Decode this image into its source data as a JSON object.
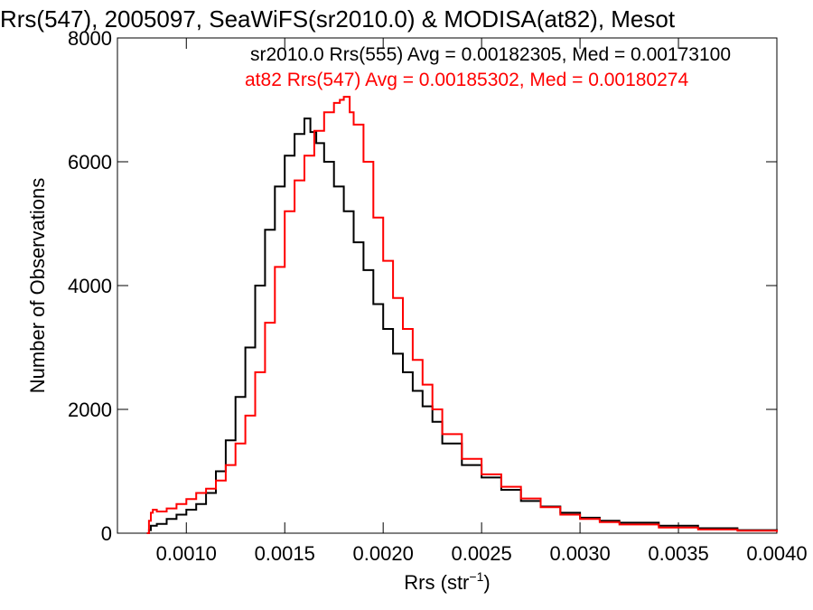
{
  "chart_data": {
    "type": "line",
    "title": "Rrs(547), 2005097, SeaWiFS(sr2010.0) & MODISA(at82), Mesot",
    "xlabel_main": "Rrs (str",
    "xlabel_sup": "−1",
    "xlabel_close": ")",
    "ylabel": "Number of Observations",
    "xlim": [
      0.00065,
      0.004
    ],
    "ylim": [
      0,
      8000
    ],
    "x_ticks": [
      0.001,
      0.0015,
      0.002,
      0.0025,
      0.003,
      0.0035,
      0.004
    ],
    "x_tick_labels": [
      "0.0010",
      "0.0015",
      "0.0020",
      "0.0025",
      "0.0030",
      "0.0035",
      "0.0040"
    ],
    "y_ticks": [
      0,
      2000,
      4000,
      6000,
      8000
    ],
    "y_tick_labels": [
      "0",
      "2000",
      "4000",
      "6000",
      "8000"
    ],
    "grid": false,
    "legend_placement": "top-right",
    "series": [
      {
        "name": "sr2010.0 Rrs(555) Avg = 0.00182305, Med = 0.00173100",
        "color": "#000000",
        "x": [
          0.0008,
          0.00081,
          0.00082,
          0.00085,
          0.0009,
          0.00095,
          0.001,
          0.00105,
          0.0011,
          0.00115,
          0.0012,
          0.00125,
          0.0013,
          0.00135,
          0.0014,
          0.00145,
          0.0015,
          0.00155,
          0.0016,
          0.00163,
          0.00166,
          0.0017,
          0.00175,
          0.0018,
          0.00185,
          0.0019,
          0.00195,
          0.002,
          0.00205,
          0.0021,
          0.00215,
          0.0022,
          0.00225,
          0.0023,
          0.0024,
          0.0025,
          0.0026,
          0.0027,
          0.0028,
          0.0029,
          0.003,
          0.0031,
          0.0032,
          0.0034,
          0.0036,
          0.0038,
          0.004
        ],
        "y": [
          0,
          50,
          120,
          150,
          230,
          300,
          380,
          470,
          650,
          1000,
          1500,
          2200,
          3000,
          4000,
          4900,
          5600,
          6100,
          6450,
          6700,
          6480,
          6300,
          6000,
          5600,
          5200,
          4700,
          4250,
          3700,
          3300,
          2900,
          2600,
          2300,
          2050,
          1800,
          1450,
          1100,
          900,
          700,
          520,
          430,
          330,
          250,
          200,
          170,
          120,
          80,
          50,
          30
        ]
      },
      {
        "name": "at82 Rrs(547) Avg = 0.00185302, Med = 0.00180274",
        "color": "#ff0000",
        "x": [
          0.0008,
          0.00081,
          0.00082,
          0.00083,
          0.00085,
          0.0009,
          0.00095,
          0.001,
          0.00105,
          0.0011,
          0.00115,
          0.0012,
          0.00125,
          0.0013,
          0.00135,
          0.0014,
          0.00145,
          0.0015,
          0.00155,
          0.0016,
          0.00165,
          0.0017,
          0.00175,
          0.00178,
          0.0018,
          0.00183,
          0.00185,
          0.0019,
          0.00195,
          0.002,
          0.00205,
          0.0021,
          0.00215,
          0.0022,
          0.00225,
          0.0023,
          0.0024,
          0.0025,
          0.0026,
          0.0027,
          0.0028,
          0.0029,
          0.003,
          0.0031,
          0.0032,
          0.0034,
          0.0036,
          0.0038,
          0.004
        ],
        "y": [
          0,
          200,
          330,
          380,
          350,
          400,
          470,
          550,
          650,
          720,
          850,
          1100,
          1450,
          1900,
          2600,
          3400,
          4300,
          5200,
          5700,
          6100,
          6500,
          6800,
          6950,
          7000,
          7050,
          6800,
          6600,
          6000,
          5100,
          4400,
          3800,
          3300,
          2800,
          2400,
          2000,
          1600,
          1200,
          950,
          750,
          560,
          420,
          300,
          230,
          180,
          140,
          90,
          60,
          40,
          20
        ]
      }
    ]
  }
}
